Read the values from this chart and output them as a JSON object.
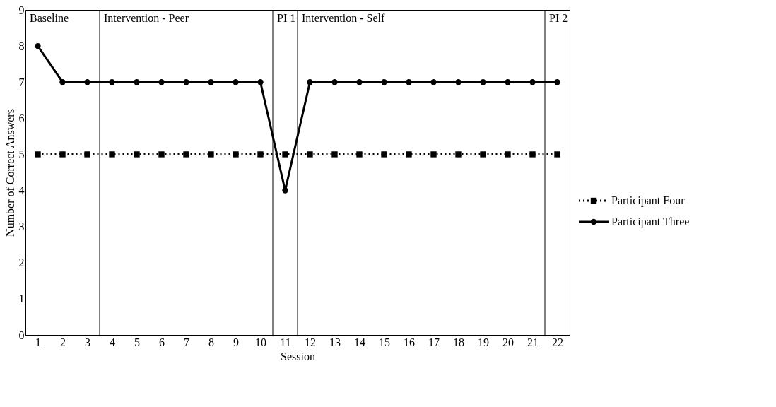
{
  "chart_data": {
    "type": "line",
    "xlabel": "Session",
    "ylabel": "Number of Correct Answers",
    "x": [
      1,
      2,
      3,
      4,
      5,
      6,
      7,
      8,
      9,
      10,
      11,
      12,
      13,
      14,
      15,
      16,
      17,
      18,
      19,
      20,
      21,
      22
    ],
    "xlim": [
      0.5,
      22.5
    ],
    "xticks": [
      1,
      2,
      3,
      4,
      5,
      6,
      7,
      8,
      9,
      10,
      11,
      12,
      13,
      14,
      15,
      16,
      17,
      18,
      19,
      20,
      21,
      22
    ],
    "ylim": [
      0,
      9
    ],
    "yticks": [
      0,
      1,
      2,
      3,
      4,
      5,
      6,
      7,
      8,
      9
    ],
    "grid": false,
    "legend": "right",
    "series": [
      {
        "name": "Participant Four",
        "color": "#000000",
        "marker": "square",
        "line_style": "dotted",
        "values": [
          5,
          5,
          5,
          5,
          5,
          5,
          5,
          5,
          5,
          5,
          5,
          5,
          5,
          5,
          5,
          5,
          5,
          5,
          5,
          5,
          5,
          5
        ]
      },
      {
        "name": "Participant Three",
        "color": "#000000",
        "marker": "circle",
        "line_style": "solid",
        "values": [
          8,
          7,
          7,
          7,
          7,
          7,
          7,
          7,
          7,
          7,
          4,
          7,
          7,
          7,
          7,
          7,
          7,
          7,
          7,
          7,
          7,
          7
        ]
      }
    ],
    "ref_lines": [
      {
        "axis": "x",
        "value": 0.5,
        "label": "Baseline",
        "color": "#000000"
      },
      {
        "axis": "x",
        "value": 3.5,
        "label": "Intervention - Peer",
        "color": "#000000"
      },
      {
        "axis": "x",
        "value": 10.5,
        "label": "PI 1",
        "color": "#000000"
      },
      {
        "axis": "x",
        "value": 11.5,
        "label": "Intervention - Self",
        "color": "#000000"
      },
      {
        "axis": "x",
        "value": 21.5,
        "label": "PI 2",
        "color": "#000000"
      }
    ]
  }
}
